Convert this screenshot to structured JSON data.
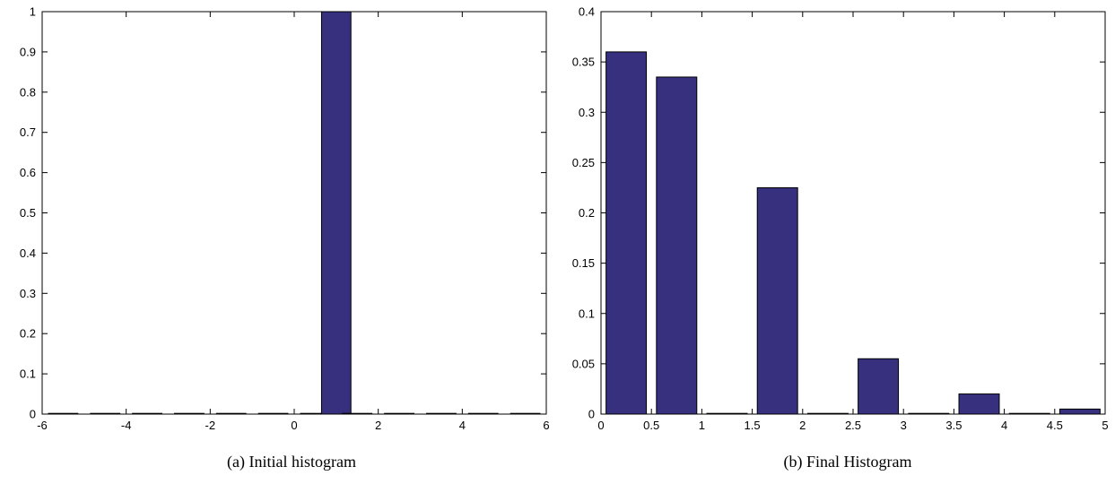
{
  "chart_data": [
    {
      "type": "bar",
      "panel": "a",
      "caption": "(a) Initial histogram",
      "x": [
        -5.5,
        -4.5,
        -3.5,
        -2.5,
        -1.5,
        -0.5,
        0.5,
        1.0,
        1.5,
        2.5,
        3.5,
        4.5,
        5.5
      ],
      "values": [
        0,
        0,
        0,
        0,
        0,
        0,
        0,
        1,
        0,
        0,
        0,
        0,
        0
      ],
      "bar_width": 0.7,
      "xlim": [
        -6,
        6
      ],
      "ylim": [
        0,
        1
      ],
      "xticks": [
        -6,
        -4,
        -2,
        0,
        2,
        4,
        6
      ],
      "xtick_labels": [
        "-6",
        "-4",
        "-2",
        "0",
        "2",
        "4",
        "6"
      ],
      "yticks": [
        0,
        0.1,
        0.2,
        0.3,
        0.4,
        0.5,
        0.6,
        0.7,
        0.8,
        0.9,
        1
      ],
      "ytick_labels": [
        "0",
        "0.1",
        "0.2",
        "0.3",
        "0.4",
        "0.5",
        "0.6",
        "0.7",
        "0.8",
        "0.9",
        "1"
      ],
      "grid": false,
      "bar_color": "#36307f",
      "edge_color": "#000000"
    },
    {
      "type": "bar",
      "panel": "b",
      "caption": "(b) Final Histogram",
      "x": [
        0.25,
        0.75,
        1.25,
        1.75,
        2.25,
        2.75,
        3.25,
        3.75,
        4.25,
        4.75
      ],
      "values": [
        0.36,
        0.335,
        0,
        0.225,
        0,
        0.055,
        0,
        0.02,
        0,
        0.005
      ],
      "bar_width": 0.4,
      "xlim": [
        0,
        5
      ],
      "ylim": [
        0,
        0.4
      ],
      "xticks": [
        0,
        0.5,
        1,
        1.5,
        2,
        2.5,
        3,
        3.5,
        4,
        4.5,
        5
      ],
      "xtick_labels": [
        "0",
        "0.5",
        "1",
        "1.5",
        "2",
        "2.5",
        "3",
        "3.5",
        "4",
        "4.5",
        "5"
      ],
      "yticks": [
        0,
        0.05,
        0.1,
        0.15,
        0.2,
        0.25,
        0.3,
        0.35,
        0.4
      ],
      "ytick_labels": [
        "0",
        "0.05",
        "0.1",
        "0.15",
        "0.2",
        "0.25",
        "0.3",
        "0.35",
        "0.4"
      ],
      "grid": false,
      "bar_color": "#36307f",
      "edge_color": "#000000"
    }
  ]
}
